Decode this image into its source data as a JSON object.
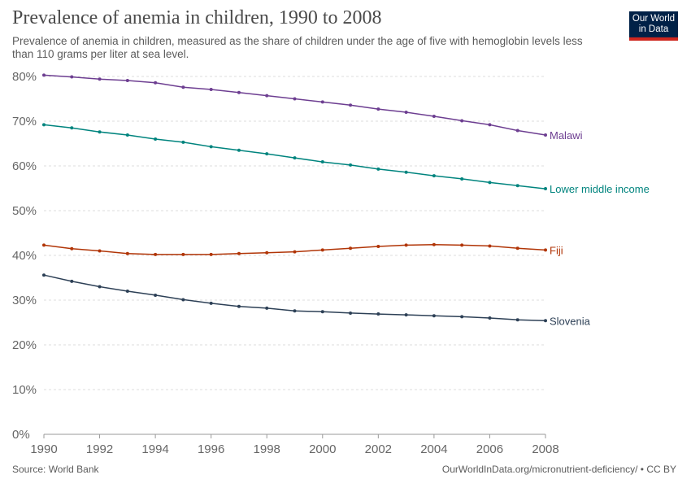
{
  "header": {
    "title": "Prevalence of anemia in children, 1990 to 2008",
    "subtitle": "Prevalence of anemia in children, measured as the share of children under the age of five with hemoglobin levels less than 110 grams per liter at sea level."
  },
  "logo": {
    "line1": "Our World",
    "line2": "in Data",
    "bg_color": "#002147",
    "accent_color": "#ce261e"
  },
  "footer": {
    "source": "Source: World Bank",
    "url": "OurWorldInData.org/micronutrient-deficiency/ • CC BY"
  },
  "chart_data": {
    "type": "line",
    "title": "Prevalence of anemia in children, 1990 to 2008",
    "x": [
      1990,
      1991,
      1992,
      1993,
      1994,
      1995,
      1996,
      1997,
      1998,
      1999,
      2000,
      2001,
      2002,
      2003,
      2004,
      2005,
      2006,
      2007,
      2008
    ],
    "xticks": [
      "1990",
      "1992",
      "1994",
      "1996",
      "1998",
      "2000",
      "2002",
      "2004",
      "2006",
      "2008"
    ],
    "yticks": [
      "0%",
      "10%",
      "20%",
      "30%",
      "40%",
      "50%",
      "60%",
      "70%",
      "80%"
    ],
    "xlim": [
      1990,
      2008
    ],
    "ylim": [
      0,
      80
    ],
    "grid": "horizontal dashed",
    "legend": "inline labels at line ends",
    "series": [
      {
        "name": "Malawi",
        "color": "#6d3e91",
        "values": [
          80.3,
          79.9,
          79.4,
          79.1,
          78.6,
          77.6,
          77.1,
          76.4,
          75.7,
          75.0,
          74.3,
          73.6,
          72.7,
          72.0,
          71.1,
          70.1,
          69.2,
          67.9,
          66.9
        ]
      },
      {
        "name": "Lower middle income",
        "color": "#00847e",
        "values": [
          69.2,
          68.5,
          67.6,
          66.9,
          66.0,
          65.3,
          64.3,
          63.5,
          62.7,
          61.8,
          60.9,
          60.2,
          59.3,
          58.6,
          57.8,
          57.1,
          56.3,
          55.6,
          54.9
        ]
      },
      {
        "name": "Fiji",
        "color": "#b13507",
        "values": [
          42.3,
          41.5,
          41.0,
          40.4,
          40.2,
          40.2,
          40.2,
          40.4,
          40.6,
          40.8,
          41.2,
          41.6,
          42.0,
          42.3,
          42.4,
          42.3,
          42.1,
          41.6,
          41.2
        ]
      },
      {
        "name": "Slovenia",
        "color": "#2d4056",
        "values": [
          35.6,
          34.2,
          33.0,
          32.0,
          31.1,
          30.1,
          29.3,
          28.6,
          28.2,
          27.6,
          27.4,
          27.1,
          26.9,
          26.7,
          26.5,
          26.3,
          26.0,
          25.6,
          25.4
        ]
      }
    ]
  }
}
